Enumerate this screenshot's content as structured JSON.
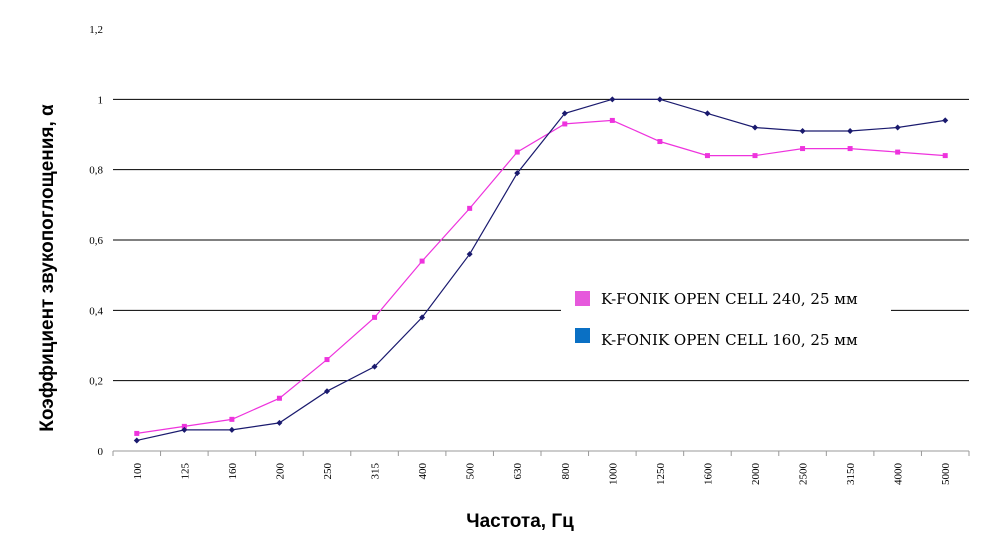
{
  "chart_data": {
    "type": "line",
    "title": "",
    "xlabel": "Частота, Гц",
    "ylabel": "Коэффициент звукопоглощения, α",
    "categories": [
      "100",
      "125",
      "160",
      "200",
      "250",
      "315",
      "400",
      "500",
      "630",
      "800",
      "1000",
      "1250",
      "1600",
      "2000",
      "2500",
      "3150",
      "4000",
      "5000"
    ],
    "y_ticks": [
      "0",
      "0,2",
      "0,4",
      "0,6",
      "0,8",
      "1",
      "1,2"
    ],
    "ylim": [
      0,
      1.2
    ],
    "grid": "horizontal",
    "legend_position": "center-right",
    "series": [
      {
        "name": "K-FONIK OPEN CELL 240, 25 мм",
        "color": "#ee33dd",
        "legend_color": "#e659dc",
        "marker": "square",
        "values": [
          0.05,
          0.07,
          0.09,
          0.15,
          0.26,
          0.38,
          0.54,
          0.69,
          0.85,
          0.93,
          0.94,
          0.88,
          0.84,
          0.84,
          0.86,
          0.86,
          0.85,
          0.84
        ]
      },
      {
        "name": "K-FONIK OPEN CELL 160, 25 мм",
        "color": "#1a1a6e",
        "legend_color": "#0a70c4",
        "marker": "diamond",
        "values": [
          0.03,
          0.06,
          0.06,
          0.08,
          0.17,
          0.24,
          0.38,
          0.56,
          0.79,
          0.96,
          1.0,
          1.0,
          0.96,
          0.92,
          0.91,
          0.91,
          0.92,
          0.94
        ]
      }
    ]
  }
}
